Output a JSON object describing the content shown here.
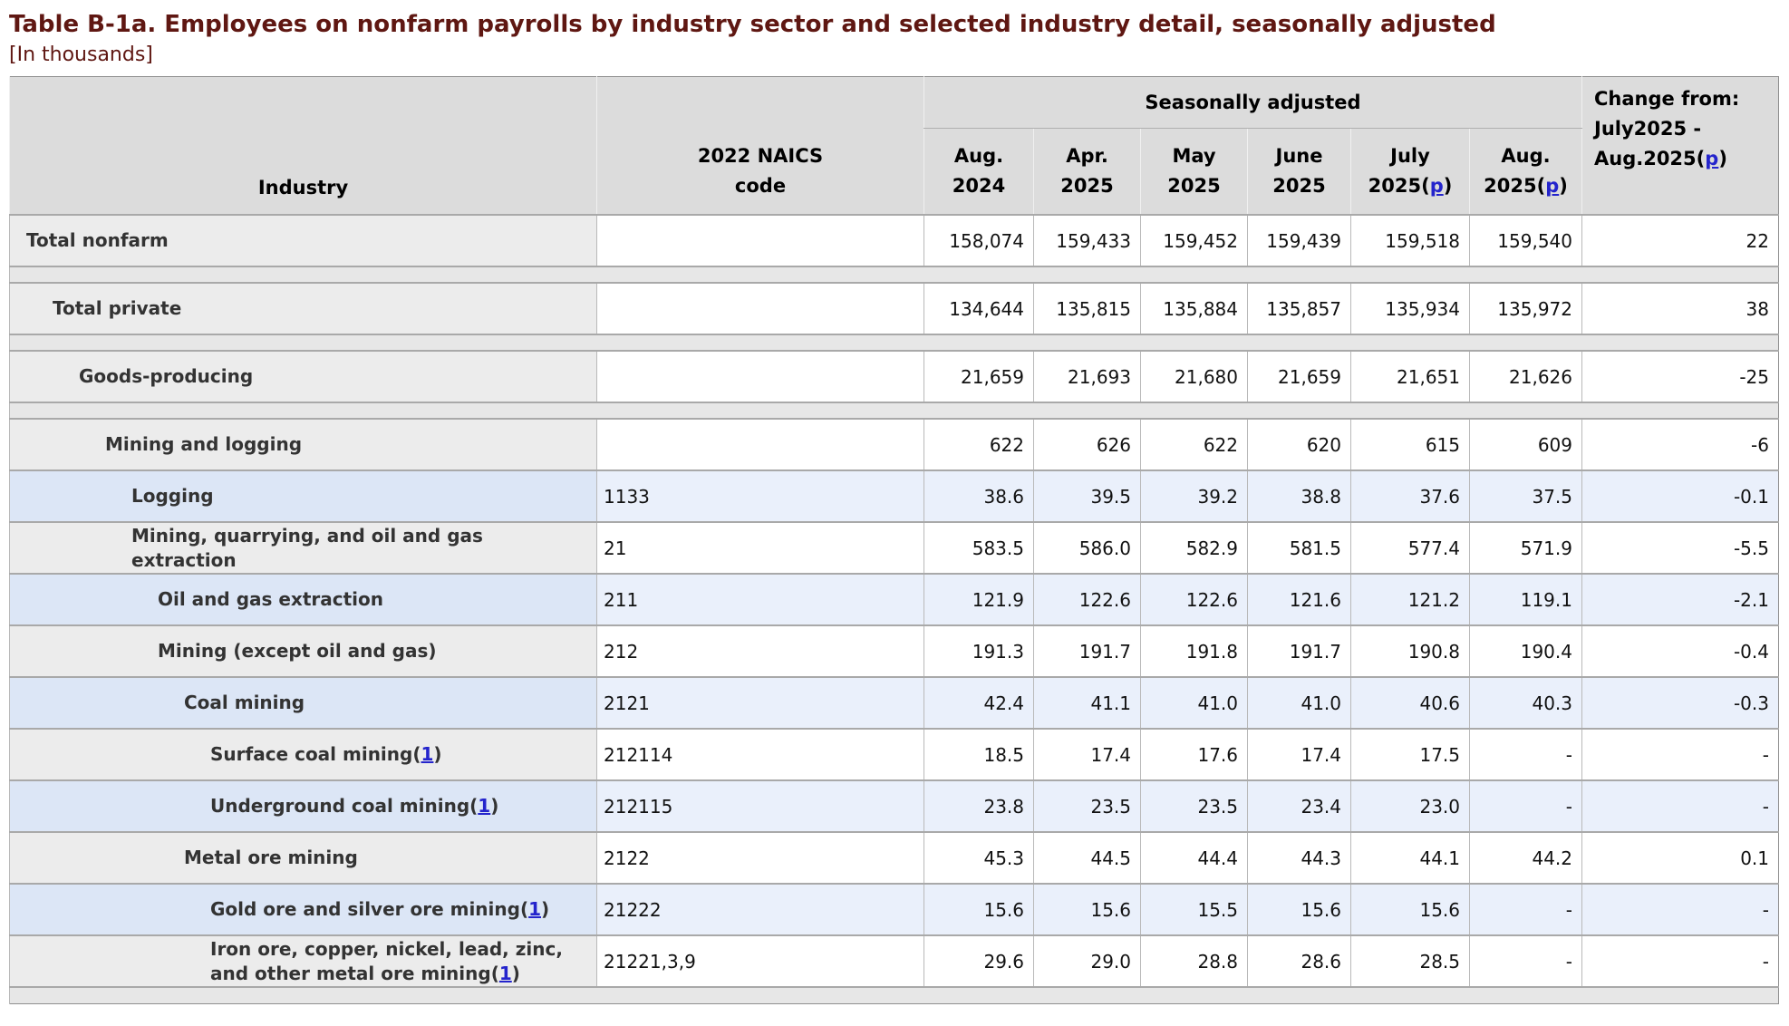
{
  "page": {
    "title": "Table B-1a. Employees on nonfarm payrolls by industry sector and selected industry detail, seasonally adjusted",
    "subtitle": "[In thousands]"
  },
  "colors": {
    "title_maroon": "#5f1712",
    "link_blue": "#2424cc",
    "header_bg": "#dcdcdc",
    "gray_label_bg": "#ececec",
    "blue_label_bg": "#dce6f6",
    "blue_cell_bg": "#eaf0fb",
    "spacer_bg": "#e7e7e7"
  },
  "table": {
    "header": {
      "industry": "Industry",
      "naics_line1": "2022 NAICS",
      "naics_line2": "code",
      "group": "Seasonally adjusted",
      "months": [
        {
          "line1": "Aug.",
          "line2_pre": "2024",
          "link": "",
          "line2_post": ""
        },
        {
          "line1": "Apr.",
          "line2_pre": "2025",
          "link": "",
          "line2_post": ""
        },
        {
          "line1": "May",
          "line2_pre": "2025",
          "link": "",
          "line2_post": ""
        },
        {
          "line1": "June",
          "line2_pre": "2025",
          "link": "",
          "line2_post": ""
        },
        {
          "line1": "July",
          "line2_pre": "2025(",
          "link": "p",
          "line2_post": ")"
        },
        {
          "line1": "Aug.",
          "line2_pre": "2025(",
          "link": "p",
          "line2_post": ")"
        }
      ],
      "change_line1": "Change from:",
      "change_line2": "July2025 -",
      "change_line3_pre": "Aug.2025(",
      "change_link": "p",
      "change_line3_post": ")"
    },
    "rows": [
      {
        "type": "data",
        "label": "Total nonfarm",
        "footnote": "",
        "naics": "",
        "indent": 0,
        "shade": "plain",
        "values": [
          "158,074",
          "159,433",
          "159,452",
          "159,439",
          "159,518",
          "159,540"
        ],
        "change": "22"
      },
      {
        "type": "spacer"
      },
      {
        "type": "data",
        "label": "Total private",
        "footnote": "",
        "naics": "",
        "indent": 1,
        "shade": "plain",
        "values": [
          "134,644",
          "135,815",
          "135,884",
          "135,857",
          "135,934",
          "135,972"
        ],
        "change": "38"
      },
      {
        "type": "spacer"
      },
      {
        "type": "data",
        "label": "Goods-producing",
        "footnote": "",
        "naics": "",
        "indent": 2,
        "shade": "plain",
        "values": [
          "21,659",
          "21,693",
          "21,680",
          "21,659",
          "21,651",
          "21,626"
        ],
        "change": "-25"
      },
      {
        "type": "spacer"
      },
      {
        "type": "data",
        "label": "Mining and logging",
        "footnote": "",
        "naics": "",
        "indent": 3,
        "shade": "plain",
        "values": [
          "622",
          "626",
          "622",
          "620",
          "615",
          "609"
        ],
        "change": "-6"
      },
      {
        "type": "data",
        "label": "Logging",
        "footnote": "",
        "naics": "1133",
        "indent": 4,
        "shade": "blue",
        "values": [
          "38.6",
          "39.5",
          "39.2",
          "38.8",
          "37.6",
          "37.5"
        ],
        "change": "-0.1"
      },
      {
        "type": "data",
        "label": "Mining, quarrying, and oil and gas extraction",
        "footnote": "",
        "naics": "21",
        "indent": 4,
        "shade": "plain",
        "values": [
          "583.5",
          "586.0",
          "582.9",
          "581.5",
          "577.4",
          "571.9"
        ],
        "change": "-5.5"
      },
      {
        "type": "data",
        "label": "Oil and gas extraction",
        "footnote": "",
        "naics": "211",
        "indent": 5,
        "shade": "blue",
        "values": [
          "121.9",
          "122.6",
          "122.6",
          "121.6",
          "121.2",
          "119.1"
        ],
        "change": "-2.1"
      },
      {
        "type": "data",
        "label": "Mining (except oil and gas)",
        "footnote": "",
        "naics": "212",
        "indent": 5,
        "shade": "plain",
        "values": [
          "191.3",
          "191.7",
          "191.8",
          "191.7",
          "190.8",
          "190.4"
        ],
        "change": "-0.4"
      },
      {
        "type": "data",
        "label": "Coal mining",
        "footnote": "",
        "naics": "2121",
        "indent": 6,
        "shade": "blue",
        "values": [
          "42.4",
          "41.1",
          "41.0",
          "41.0",
          "40.6",
          "40.3"
        ],
        "change": "-0.3"
      },
      {
        "type": "data",
        "label": "Surface coal mining",
        "footnote": "1",
        "naics": "212114",
        "indent": 7,
        "shade": "plain",
        "values": [
          "18.5",
          "17.4",
          "17.6",
          "17.4",
          "17.5",
          "-"
        ],
        "change": "-"
      },
      {
        "type": "data",
        "label": "Underground coal mining",
        "footnote": "1",
        "naics": "212115",
        "indent": 7,
        "shade": "blue",
        "values": [
          "23.8",
          "23.5",
          "23.5",
          "23.4",
          "23.0",
          "-"
        ],
        "change": "-"
      },
      {
        "type": "data",
        "label": "Metal ore mining",
        "footnote": "",
        "naics": "2122",
        "indent": 6,
        "shade": "plain",
        "values": [
          "45.3",
          "44.5",
          "44.4",
          "44.3",
          "44.1",
          "44.2"
        ],
        "change": "0.1"
      },
      {
        "type": "data",
        "label": "Gold ore and silver ore mining",
        "footnote": "1",
        "naics": "21222",
        "indent": 7,
        "shade": "blue",
        "values": [
          "15.6",
          "15.6",
          "15.5",
          "15.6",
          "15.6",
          "-"
        ],
        "change": "-"
      },
      {
        "type": "data",
        "label": "Iron ore, copper, nickel, lead, zinc, and other metal ore mining",
        "footnote": "1",
        "naics": "21221,3,9",
        "indent": 7,
        "shade": "plain",
        "values": [
          "29.6",
          "29.0",
          "28.8",
          "28.6",
          "28.5",
          "-"
        ],
        "change": "-"
      },
      {
        "type": "spacer"
      }
    ]
  }
}
